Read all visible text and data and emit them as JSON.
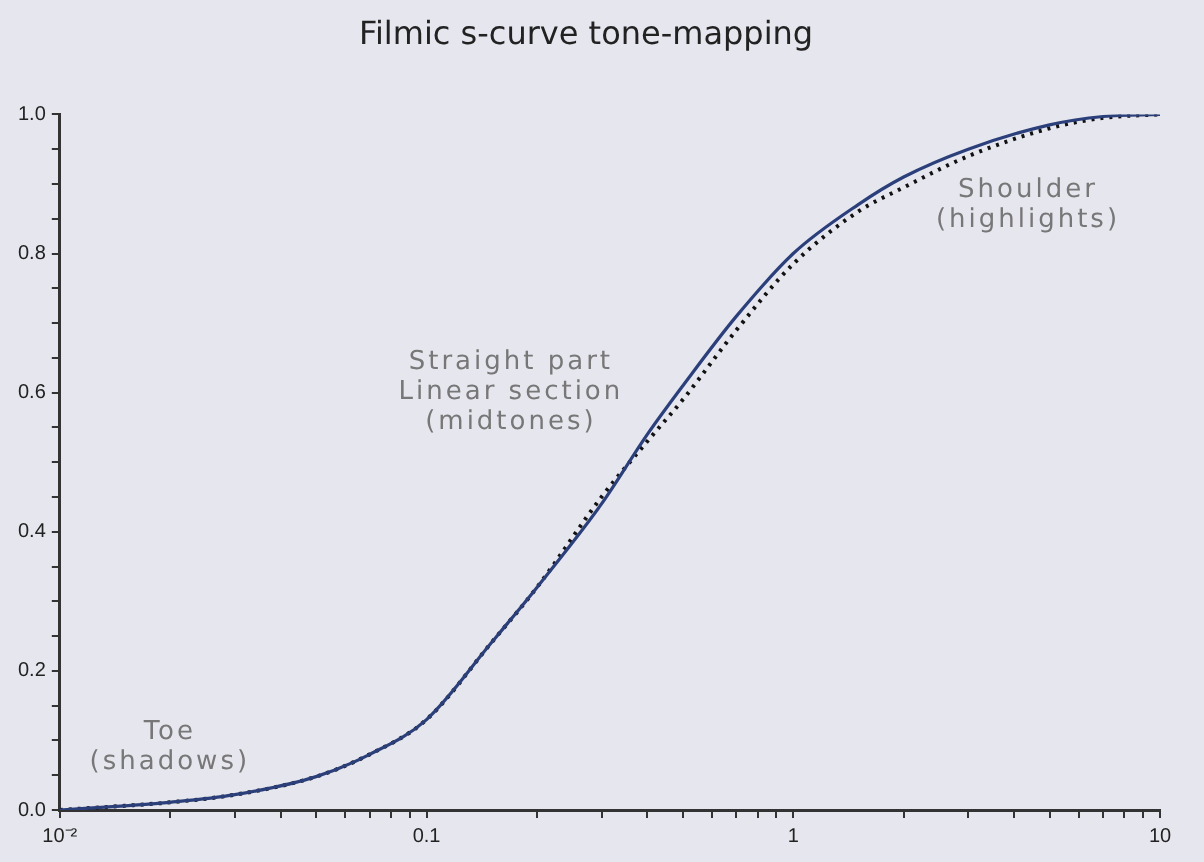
{
  "chart_data": {
    "type": "line",
    "title": "Filmic s-curve tone-mapping",
    "x": [
      0.01,
      0.015,
      0.02,
      0.03,
      0.05,
      0.07,
      0.1,
      0.15,
      0.2,
      0.3,
      0.4,
      0.5,
      0.7,
      1,
      1.5,
      2,
      3,
      5,
      7,
      10
    ],
    "series": [
      {
        "color": "#2b3f7a",
        "line_style": "solid",
        "values": [
          0.0,
          0.006,
          0.011,
          0.022,
          0.048,
          0.08,
          0.13,
          0.24,
          0.32,
          0.44,
          0.54,
          0.61,
          0.71,
          0.8,
          0.87,
          0.91,
          0.95,
          0.985,
          0.997,
          1.0
        ]
      },
      {
        "color": "#111111",
        "line_style": "dotted",
        "values": [
          0.0,
          0.006,
          0.011,
          0.022,
          0.048,
          0.08,
          0.13,
          0.24,
          0.32,
          0.45,
          0.53,
          0.59,
          0.69,
          0.785,
          0.86,
          0.895,
          0.94,
          0.98,
          0.995,
          1.0
        ]
      }
    ],
    "log": "x",
    "xlim": [
      0.01,
      10
    ],
    "ylim": [
      0,
      1
    ],
    "xticks": [
      {
        "value": 0.01,
        "label": "10⁻²"
      },
      {
        "value": 0.02,
        "label": null
      },
      {
        "value": 0.03,
        "label": null
      },
      {
        "value": 0.04,
        "label": null
      },
      {
        "value": 0.05,
        "label": null
      },
      {
        "value": 0.06,
        "label": null
      },
      {
        "value": 0.07,
        "label": null
      },
      {
        "value": 0.08,
        "label": null
      },
      {
        "value": 0.09,
        "label": null
      },
      0.1,
      {
        "value": 0.2,
        "label": null
      },
      {
        "value": 0.3,
        "label": null
      },
      {
        "value": 0.4,
        "label": null
      },
      {
        "value": 0.5,
        "label": null
      },
      {
        "value": 0.6,
        "label": null
      },
      {
        "value": 0.7,
        "label": null
      },
      {
        "value": 0.8,
        "label": null
      },
      {
        "value": 0.9,
        "label": null
      },
      1,
      {
        "value": 2,
        "label": null
      },
      {
        "value": 3,
        "label": null
      },
      {
        "value": 4,
        "label": null
      },
      {
        "value": 5,
        "label": null
      },
      {
        "value": 6,
        "label": null
      },
      {
        "value": 7,
        "label": null
      },
      {
        "value": 8,
        "label": null
      },
      {
        "value": 9,
        "label": null
      },
      10
    ],
    "yticks": [
      {
        "value": 0,
        "label": "0.0"
      },
      {
        "value": 0.05,
        "label": null
      },
      {
        "value": 0.1,
        "label": null
      },
      {
        "value": 0.15,
        "label": null
      },
      {
        "value": 0.2,
        "label": "0.2"
      },
      {
        "value": 0.25,
        "label": null
      },
      {
        "value": 0.3,
        "label": null
      },
      {
        "value": 0.35,
        "label": null
      },
      {
        "value": 0.4,
        "label": "0.4"
      },
      {
        "value": 0.45,
        "label": null
      },
      {
        "value": 0.5,
        "label": null
      },
      {
        "value": 0.55,
        "label": null
      },
      {
        "value": 0.6,
        "label": "0.6"
      },
      {
        "value": 0.65,
        "label": null
      },
      {
        "value": 0.7,
        "label": null
      },
      {
        "value": 0.75,
        "label": null
      },
      {
        "value": 0.8,
        "label": "0.8"
      },
      {
        "value": 0.85,
        "label": null
      },
      {
        "value": 0.9,
        "label": null
      },
      {
        "value": 0.95,
        "label": null
      },
      {
        "value": 1,
        "label": "1.0"
      }
    ],
    "annotations": [
      "Toe\n(shadows)",
      "Straight part\nLinear section\n(midtones)",
      "Shoulder\n(highlights)"
    ],
    "grid": false,
    "legend": false,
    "marker": "none"
  }
}
